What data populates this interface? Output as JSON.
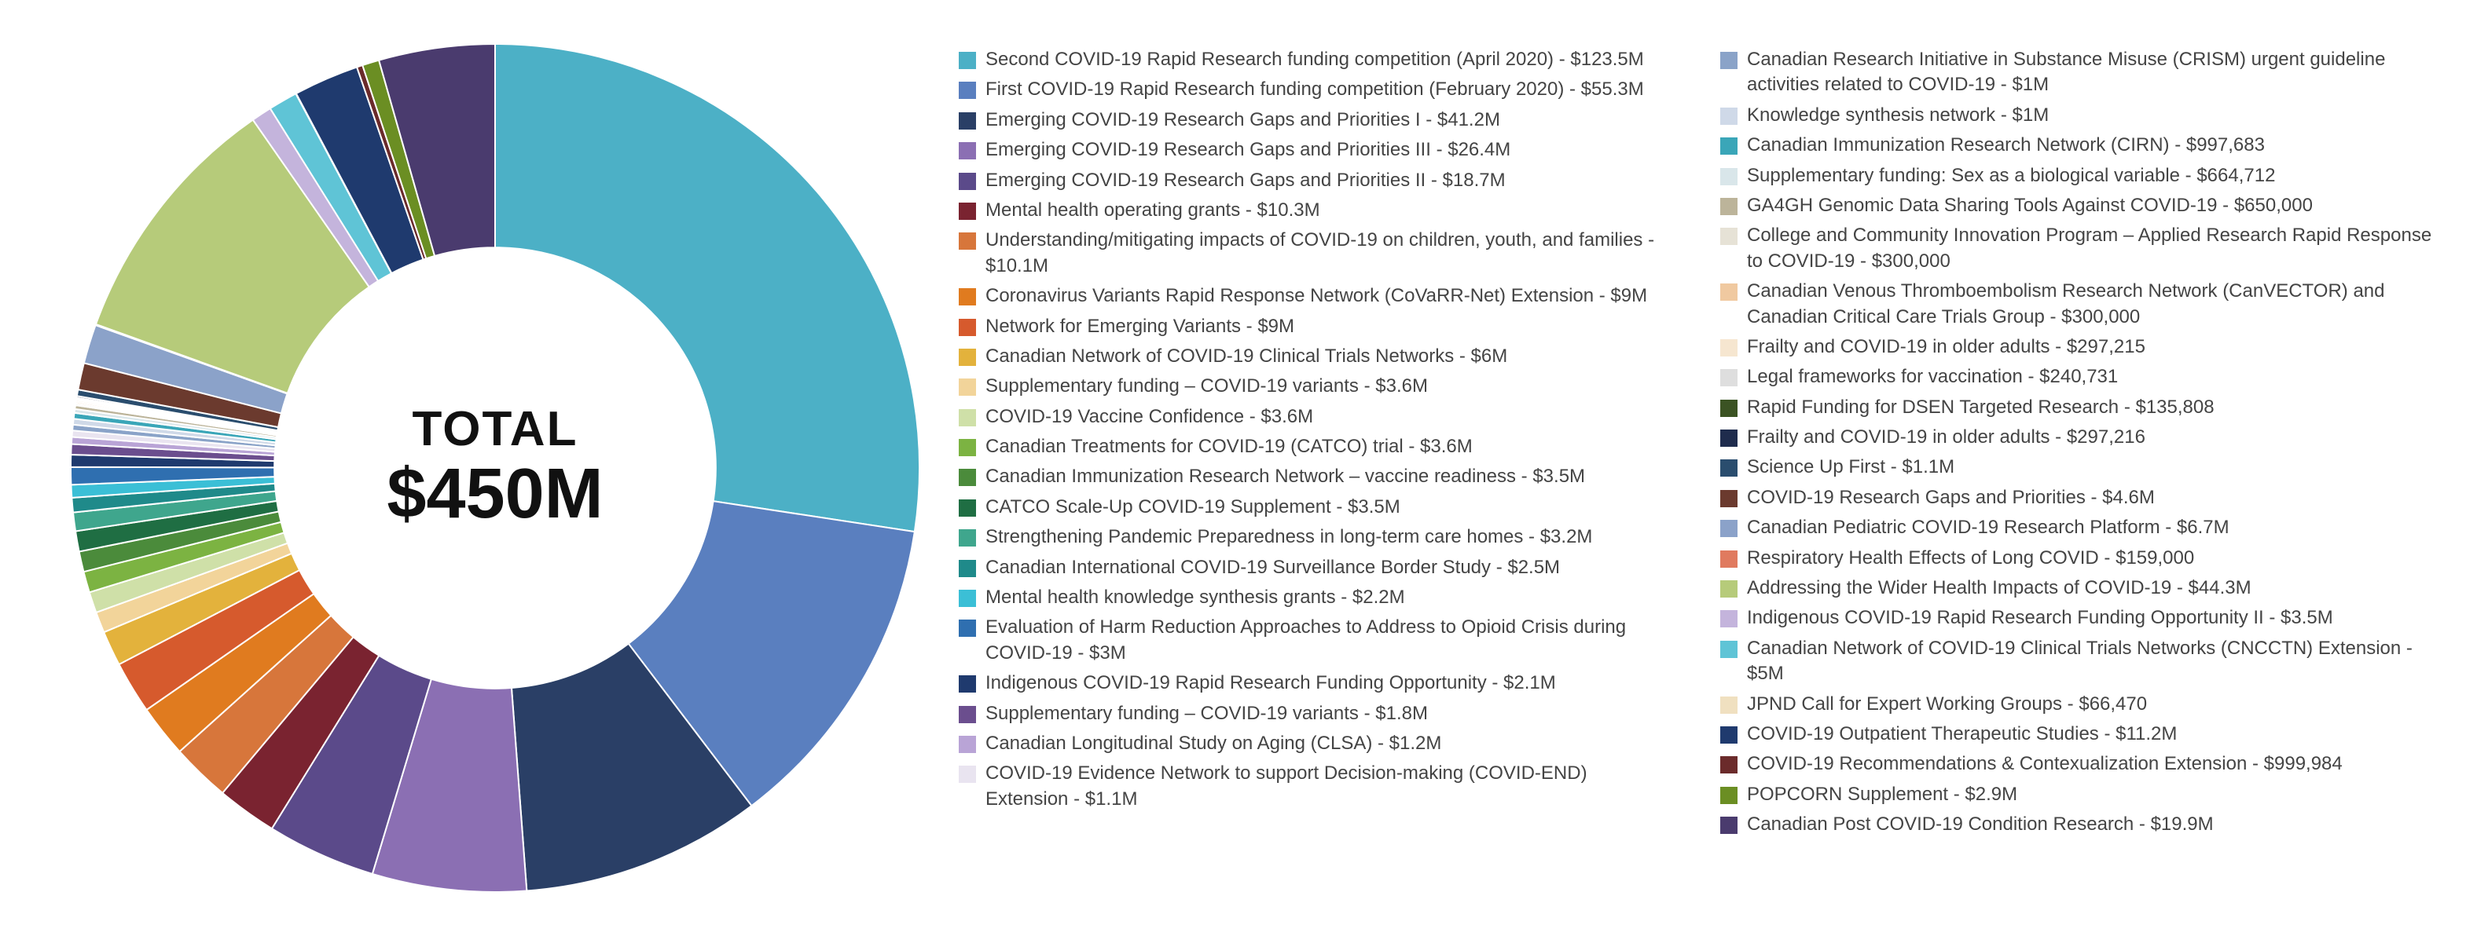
{
  "center": {
    "line1": "TOTAL",
    "line2": "$450M"
  },
  "chart": {
    "type": "donut",
    "background_color": "#ffffff",
    "inner_radius_ratio": 0.52,
    "start_angle_deg": -90,
    "clockwise": true,
    "stroke_color": "#ffffff",
    "stroke_width": 2,
    "center_fontsize_line1": 62,
    "center_fontsize_line2": 90,
    "legend_fontsize": 24,
    "legend_swatch_size": 22
  },
  "items": [
    {
      "label": "Second COVID-19 Rapid Research funding competition (April 2020) - $123.5M",
      "value": 123.5,
      "color": "#4cb0c6"
    },
    {
      "label": "First COVID-19 Rapid Research funding competition (February 2020) - $55.3M",
      "value": 55.3,
      "color": "#5a7fbf"
    },
    {
      "label": "Emerging COVID-19 Research Gaps and Priorities I - $41.2M",
      "value": 41.2,
      "color": "#2a3f66"
    },
    {
      "label": "Emerging COVID-19 Research Gaps and Priorities III - $26.4M",
      "value": 26.4,
      "color": "#8b6fb3"
    },
    {
      "label": "Emerging COVID-19 Research Gaps and Priorities II - $18.7M",
      "value": 18.7,
      "color": "#5b4a8a"
    },
    {
      "label": "Mental health operating grants - $10.3M",
      "value": 10.3,
      "color": "#7a2330"
    },
    {
      "label": "Understanding/mitigating impacts of COVID-19 on children, youth, and families - $10.1M",
      "value": 10.1,
      "color": "#d7763b"
    },
    {
      "label": "Coronavirus Variants Rapid Response Network (CoVaRR-Net) Extension - $9M",
      "value": 9.0,
      "color": "#e07b1f"
    },
    {
      "label": "Network for Emerging Variants - $9M",
      "value": 9.0,
      "color": "#d65a2d"
    },
    {
      "label": "Canadian Network of COVID-19 Clinical Trials Networks - $6M",
      "value": 6.0,
      "color": "#e3b23c"
    },
    {
      "label": "Supplementary funding – COVID-19 variants - $3.6M",
      "value": 3.6,
      "color": "#f2d49a"
    },
    {
      "label": "COVID-19 Vaccine Confidence - $3.6M",
      "value": 3.6,
      "color": "#cfe0a8"
    },
    {
      "label": "Canadian Treatments for COVID-19 (CATCO) trial - $3.6M",
      "value": 3.6,
      "color": "#7cb342"
    },
    {
      "label": "Canadian Immunization Research Network – vaccine readiness - $3.5M",
      "value": 3.5,
      "color": "#4b8b3b"
    },
    {
      "label": "CATCO Scale-Up COVID-19 Supplement - $3.5M",
      "value": 3.5,
      "color": "#1f6e43"
    },
    {
      "label": "Strengthening Pandemic Preparedness in long-term care homes - $3.2M",
      "value": 3.2,
      "color": "#3fa68d"
    },
    {
      "label": "Canadian International COVID-19 Surveillance Border Study - $2.5M",
      "value": 2.5,
      "color": "#1f8a8a"
    },
    {
      "label": "Mental health knowledge synthesis grants - $2.2M",
      "value": 2.2,
      "color": "#3bbfd6"
    },
    {
      "label": "Evaluation of Harm Reduction Approaches to Address to Opioid Crisis during COVID-19 - $3M",
      "value": 3.0,
      "color": "#2f6fb0"
    },
    {
      "label": "Indigenous COVID-19 Rapid Research Funding Opportunity - $2.1M",
      "value": 2.1,
      "color": "#1f3a6e"
    },
    {
      "label": "Supplementary funding – COVID-19 variants - $1.8M",
      "value": 1.8,
      "color": "#6b4e8e"
    },
    {
      "label": "Canadian Longitudinal Study on Aging (CLSA) - $1.2M",
      "value": 1.2,
      "color": "#b9a4d6"
    },
    {
      "label": "COVID-19 Evidence Network to support Decision-making (COVID-END) Extension - $1.1M",
      "value": 1.1,
      "color": "#e9e4f0"
    },
    {
      "label": "Canadian Research Initiative in Substance Misuse (CRISM) urgent guideline activities related to COVID-19 - $1M",
      "value": 1.0,
      "color": "#8aa3c8"
    },
    {
      "label": "Knowledge synthesis network - $1M",
      "value": 1.0,
      "color": "#cfd9e8"
    },
    {
      "label": "Canadian Immunization Research Network (CIRN) - $997,683",
      "value": 1.0,
      "color": "#3aa6b8"
    },
    {
      "label": "Supplementary funding: Sex as a biological variable - $664,712",
      "value": 0.66,
      "color": "#d9e6ea"
    },
    {
      "label": "GA4GH Genomic Data Sharing Tools Against COVID-19 - $650,000",
      "value": 0.65,
      "color": "#bcb49a"
    },
    {
      "label": "College and Community Innovation Program – Applied Research Rapid Response to COVID-19 - $300,000",
      "value": 0.3,
      "color": "#e6e2d6"
    },
    {
      "label": "Canadian Venous Thromboembolism Research Network (CanVECTOR) and Canadian Critical Care Trials Group - $300,000",
      "value": 0.3,
      "color": "#f0c9a0"
    },
    {
      "label": "Frailty and COVID-19 in older adults - $297,215",
      "value": 0.3,
      "color": "#f6e6d0"
    },
    {
      "label": "Legal frameworks for vaccination - $240,731",
      "value": 0.24,
      "color": "#dedede"
    },
    {
      "label": "Rapid Funding for DSEN Targeted Research - $135,808",
      "value": 0.14,
      "color": "#3b5323"
    },
    {
      "label": "Frailty and COVID-19 in older adults - $297,216",
      "value": 0.3,
      "color": "#1f2c4d"
    },
    {
      "label": "Science Up First - $1.1M",
      "value": 1.1,
      "color": "#2a4d6e"
    },
    {
      "label": "COVID-19 Research Gaps and Priorities - $4.6M",
      "value": 4.6,
      "color": "#6b3a2e"
    },
    {
      "label": "Canadian Pediatric COVID-19 Research Platform - $6.7M",
      "value": 6.7,
      "color": "#8ba2c9"
    },
    {
      "label": "Respiratory Health Effects of Long COVID - $159,000",
      "value": 0.16,
      "color": "#e07a5f"
    },
    {
      "label": "Addressing the Wider Health Impacts of COVID-19 - $44.3M",
      "value": 44.3,
      "color": "#b6cb7a"
    },
    {
      "label": "Indigenous COVID-19 Rapid Research Funding Opportunity II - $3.5M",
      "value": 3.5,
      "color": "#c4b4dc"
    },
    {
      "label": "Canadian Network of COVID-19 Clinical Trials Networks (CNCCTN) Extension - $5M",
      "value": 5.0,
      "color": "#5fc4d6"
    },
    {
      "label": "JPND Call for Expert Working Groups - $66,470",
      "value": 0.07,
      "color": "#f0e0c0"
    },
    {
      "label": "COVID-19 Outpatient Therapeutic Studies - $11.2M",
      "value": 11.2,
      "color": "#1f3a6e"
    },
    {
      "label": "COVID-19 Recommendations & Contexualization Extension - $999,984",
      "value": 1.0,
      "color": "#6b2b2b"
    },
    {
      "label": "POPCORN Supplement - $2.9M",
      "value": 2.9,
      "color": "#6b8e23"
    },
    {
      "label": "Canadian Post COVID-19 Condition Research - $19.9M",
      "value": 19.9,
      "color": "#4a3b6e"
    }
  ],
  "legend_split": 23
}
